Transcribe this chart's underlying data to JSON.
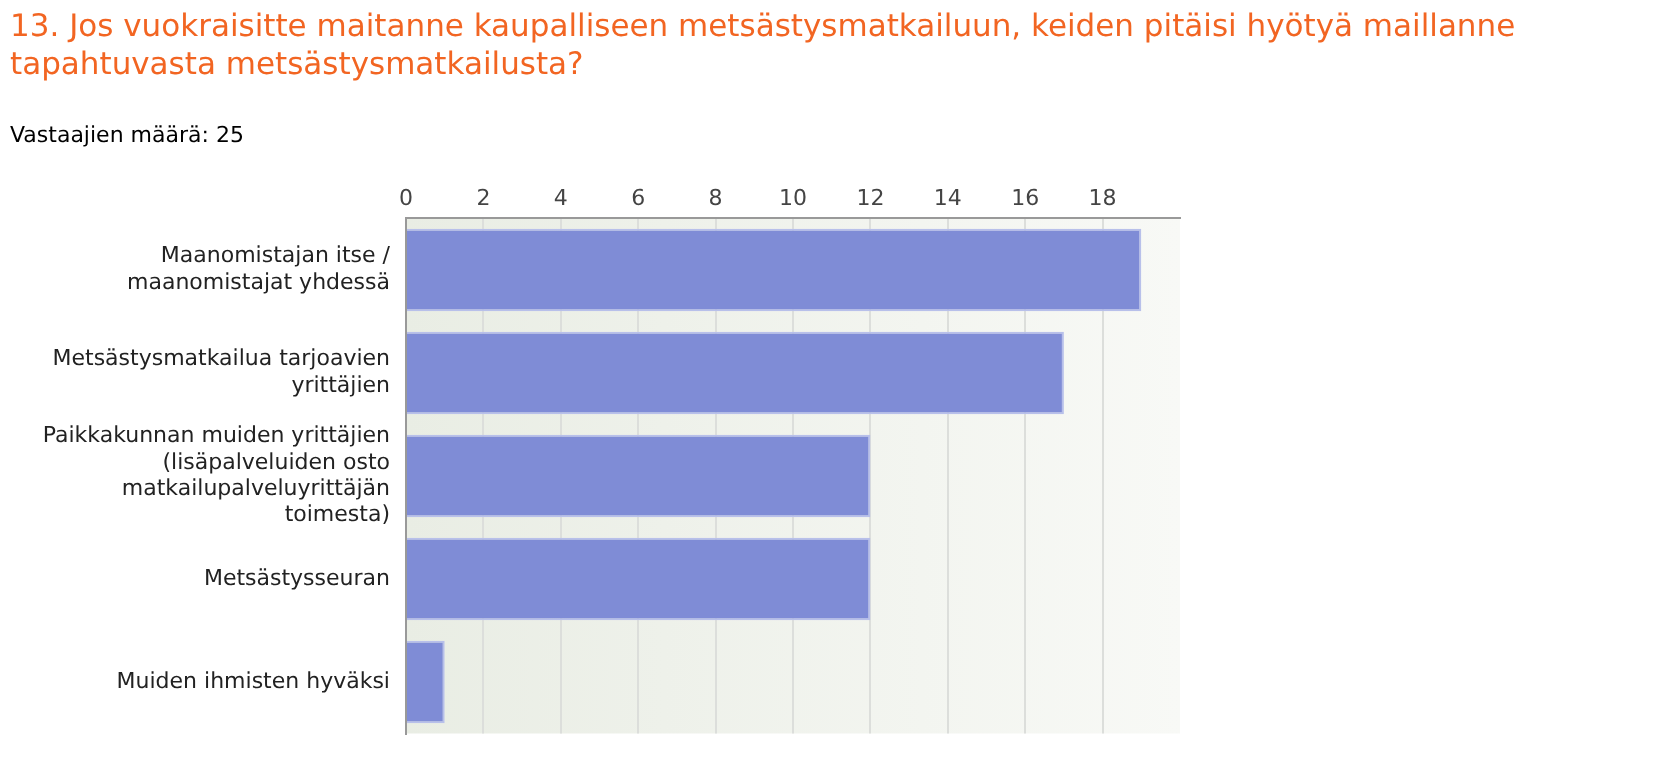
{
  "chart_data": {
    "type": "bar",
    "orientation": "horizontal",
    "title": "13. Jos vuokraisitte maitanne kaupalliseen metsästysmatkailuun, keiden pitäisi hyötyä maillanne tapahtuvasta metsästysmatkailusta?",
    "subtitle": "Vastaajien määrä: 25",
    "categories": [
      "Maanomistajan itse / maanomistajat yhdessä",
      "Metsästysmatkailua tarjoavien yrittäjien",
      "Paikkakunnan muiden yrittäjien (lisäpalveluiden osto matkailupalveluyrittäjän toimesta)",
      "Metsästysseuran",
      "Muiden ihmisten hyväksi"
    ],
    "values": [
      19,
      17,
      12,
      12,
      1
    ],
    "color": "#7f8cd6",
    "xlim": [
      0,
      20
    ],
    "xticks": [
      0,
      2,
      4,
      6,
      8,
      10,
      12,
      14,
      16,
      18
    ],
    "grid": "x",
    "legend": false
  }
}
